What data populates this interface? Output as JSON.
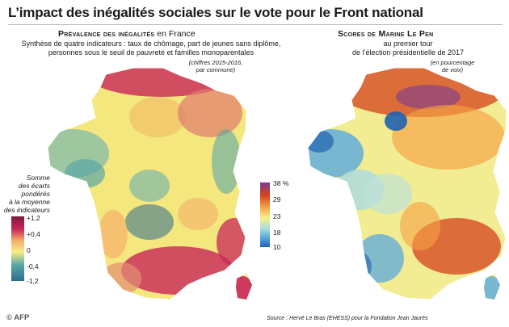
{
  "title": "L’impact des inégalités sociales sur le vote pour le Front national",
  "left_map": {
    "heading_main": "Prévalence des inégalités",
    "heading_tail": " en France",
    "subtitle_line1": "Synthèse de quatre indicateurs : taux de chômage, part de jeunes sans diplôme,",
    "subtitle_line2": "personnes sous le seuil de pauvreté et familles monoparentales",
    "note_line1": "(chiffres 2015-2016,",
    "note_line2": "par commune)",
    "legend_title": [
      "Somme",
      "des écarts",
      "pondérés",
      "à la moyenne",
      "des indicateurs"
    ],
    "legend_ticks": [
      "+1,2",
      "+0,4",
      "0",
      "-0,4",
      "-1,2"
    ],
    "colors": [
      "#2b6c8e",
      "#5aa8a6",
      "#f4ee82",
      "#f5b06b",
      "#c8285a",
      "#7d1a3c"
    ]
  },
  "right_map": {
    "heading_main": "Scores de Marine Le Pen",
    "subtitle_line1": "au premier tour",
    "subtitle_line2": "de l’élection présidentielle de 2017",
    "note_line1": "(en pourcentage",
    "note_line2": "de voix)",
    "legend_ticks": [
      "38 %",
      "29",
      "23",
      "18",
      "10"
    ],
    "colors": [
      "#1f62b0",
      "#5aa9de",
      "#a8dbe0",
      "#f6f08c",
      "#f5a244",
      "#d5421e",
      "#7a3c8f"
    ]
  },
  "footer": {
    "source": "Source : Hervé Le Bras (EHESS) pour la Fondation Jean Jaurès",
    "logo": "© AFP"
  }
}
